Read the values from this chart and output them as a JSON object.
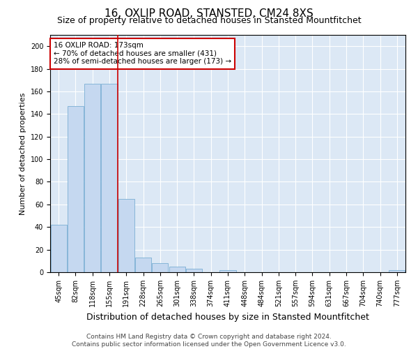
{
  "title": "16, OXLIP ROAD, STANSTED, CM24 8XS",
  "subtitle": "Size of property relative to detached houses in Stansted Mountfitchet",
  "xlabel": "Distribution of detached houses by size in Stansted Mountfitchet",
  "ylabel": "Number of detached properties",
  "footer_line1": "Contains HM Land Registry data © Crown copyright and database right 2024.",
  "footer_line2": "Contains public sector information licensed under the Open Government Licence v3.0.",
  "bar_labels": [
    "45sqm",
    "82sqm",
    "118sqm",
    "155sqm",
    "191sqm",
    "228sqm",
    "265sqm",
    "301sqm",
    "338sqm",
    "374sqm",
    "411sqm",
    "448sqm",
    "484sqm",
    "521sqm",
    "557sqm",
    "594sqm",
    "631sqm",
    "667sqm",
    "704sqm",
    "740sqm",
    "777sqm"
  ],
  "bar_values": [
    42,
    147,
    167,
    167,
    65,
    13,
    8,
    5,
    3,
    0,
    2,
    0,
    0,
    0,
    0,
    0,
    0,
    0,
    0,
    0,
    2
  ],
  "bar_color": "#c5d8f0",
  "bar_edge_color": "#7aafd4",
  "red_line_x": 3.5,
  "annotation_text": "16 OXLIP ROAD: 173sqm\n← 70% of detached houses are smaller (431)\n28% of semi-detached houses are larger (173) →",
  "annotation_box_color": "#ffffff",
  "annotation_box_edge": "#cc0000",
  "ylim": [
    0,
    210
  ],
  "yticks": [
    0,
    20,
    40,
    60,
    80,
    100,
    120,
    140,
    160,
    180,
    200
  ],
  "background_color": "#dce8f5",
  "grid_color": "#ffffff",
  "red_line_color": "#cc0000",
  "title_fontsize": 11,
  "subtitle_fontsize": 9,
  "tick_fontsize": 7,
  "ylabel_fontsize": 8,
  "xlabel_fontsize": 9,
  "footer_fontsize": 6.5
}
